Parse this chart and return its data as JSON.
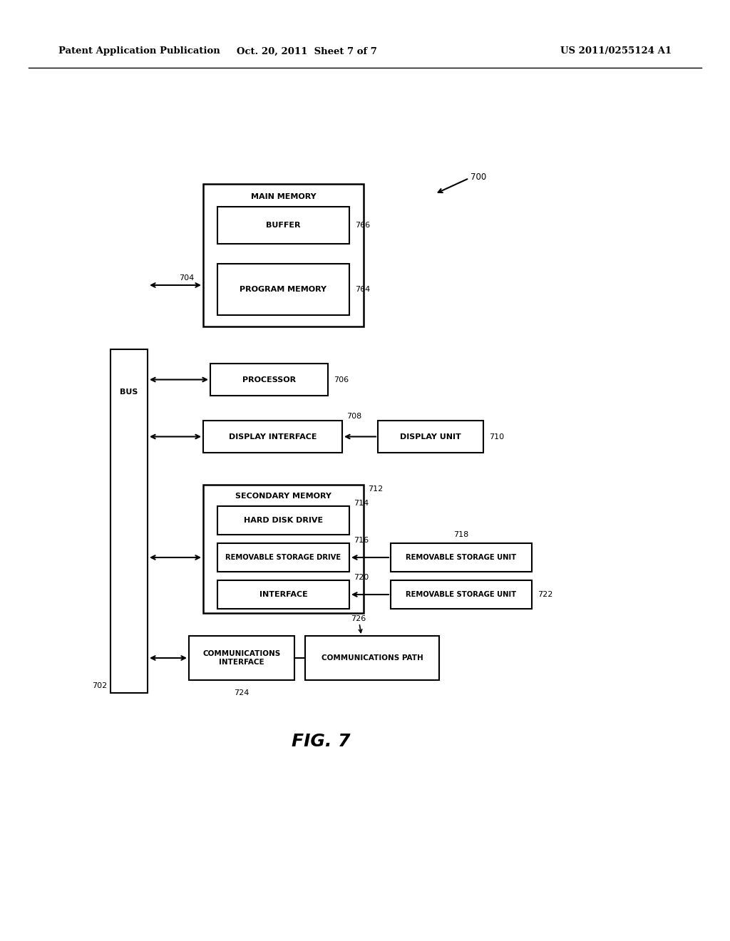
{
  "bg_color": "#ffffff",
  "header_left": "Patent Application Publication",
  "header_mid": "Oct. 20, 2011  Sheet 7 of 7",
  "header_right": "US 2011/0255124 A1",
  "fig_label": "FIG. 7",
  "line_color": "#000000",
  "text_color": "#000000"
}
